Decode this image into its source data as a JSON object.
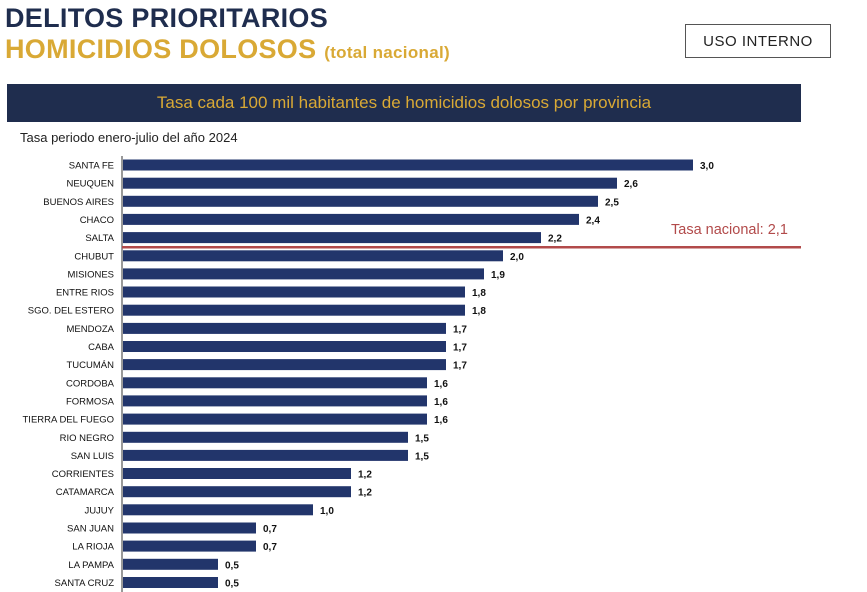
{
  "header": {
    "title": "DELITOS PRIORITARIOS",
    "subtitle": "HOMICIDIOS DOLOSOS",
    "subtitle_note": "(total nacional)",
    "badge": "USO INTERNO"
  },
  "colors": {
    "navy": "#1f2d4e",
    "gold": "#d9a935",
    "bar": "#22356b",
    "reference_line": "#b24a4a"
  },
  "chart_data": {
    "type": "bar",
    "orientation": "horizontal",
    "title": "Tasa cada 100 mil habitantes de homicidios dolosos por provincia",
    "subtitle": "Tasa periodo enero-julio del año 2024",
    "categories": [
      "SANTA FE",
      "NEUQUEN",
      "BUENOS AIRES",
      "CHACO",
      "SALTA",
      "CHUBUT",
      "MISIONES",
      "ENTRE RIOS",
      "SGO. DEL ESTERO",
      "MENDOZA",
      "CABA",
      "TUCUMÁN",
      "CORDOBA",
      "FORMOSA",
      "TIERRA DEL FUEGO",
      "RIO NEGRO",
      "SAN LUIS",
      "CORRIENTES",
      "CATAMARCA",
      "JUJUY",
      "SAN JUAN",
      "LA RIOJA",
      "LA PAMPA",
      "SANTA CRUZ"
    ],
    "values": [
      3.0,
      2.6,
      2.5,
      2.4,
      2.2,
      2.0,
      1.9,
      1.8,
      1.8,
      1.7,
      1.7,
      1.7,
      1.6,
      1.6,
      1.6,
      1.5,
      1.5,
      1.2,
      1.2,
      1.0,
      0.7,
      0.7,
      0.5,
      0.5
    ],
    "value_labels": [
      "3,0",
      "2,6",
      "2,5",
      "2,4",
      "2,2",
      "2,0",
      "1,9",
      "1,8",
      "1,8",
      "1,7",
      "1,7",
      "1,7",
      "1,6",
      "1,6",
      "1,6",
      "1,5",
      "1,5",
      "1,2",
      "1,2",
      "1,0",
      "0,7",
      "0,7",
      "0,5",
      "0,5"
    ],
    "reference_line": {
      "value": 2.1,
      "label": "Tasa nacional: 2,1"
    },
    "grid": false,
    "legend": "none"
  }
}
